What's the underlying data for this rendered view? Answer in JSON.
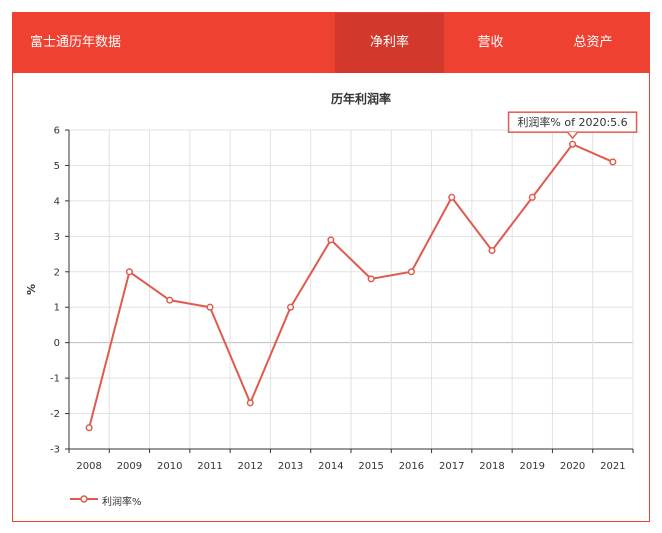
{
  "header": {
    "title": "富士通历年数据",
    "tabs": [
      {
        "label": "净利率",
        "active": true
      },
      {
        "label": "营收",
        "active": false
      },
      {
        "label": "总资产",
        "active": false
      }
    ]
  },
  "colors": {
    "brand": "#ef4131",
    "tab_active": "#d2382b",
    "series": "#e05a4e"
  },
  "chart_data": {
    "type": "line",
    "title": "历年利润率",
    "xlabel": "",
    "ylabel": "%",
    "x": [
      "2008",
      "2009",
      "2010",
      "2011",
      "2012",
      "2013",
      "2014",
      "2015",
      "2016",
      "2017",
      "2018",
      "2019",
      "2020",
      "2021"
    ],
    "series": [
      {
        "name": "利润率%",
        "values": [
          -2.4,
          2.0,
          1.2,
          1.0,
          -1.7,
          1.0,
          2.9,
          1.8,
          2.0,
          4.1,
          2.6,
          4.1,
          5.6,
          5.1
        ]
      }
    ],
    "ylim": [
      -3,
      6
    ],
    "yticks": [
      -3,
      -2,
      -1,
      0,
      1,
      2,
      3,
      4,
      5,
      6
    ],
    "grid": true,
    "legend": "bottom-left",
    "tooltip": {
      "text": "利润率% of 2020:5.6",
      "index": 12
    }
  }
}
